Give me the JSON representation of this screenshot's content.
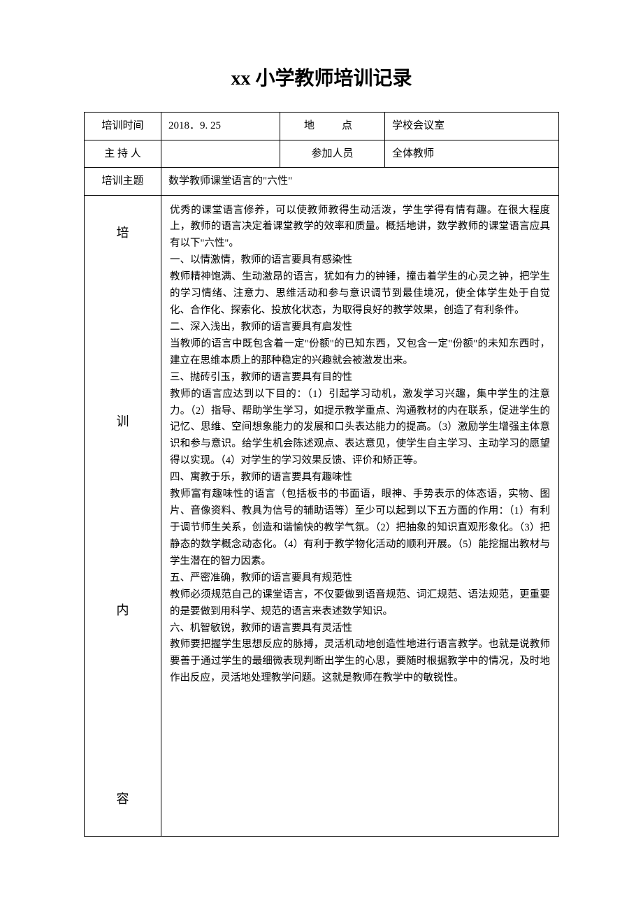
{
  "title": "xx 小学教师培训记录",
  "labels": {
    "time": "培训时间",
    "location": "地　点",
    "host": "主 持 人",
    "attendees": "参加人员",
    "subject": "培训主题",
    "content_vertical": "培\n\n\n训\n\n\n内\n\n\n容"
  },
  "header": {
    "time": "2018．9. 25",
    "location": "学校会议室",
    "host": "",
    "attendees": "全体教师",
    "subject": "数学教师课堂语言的\"六性\""
  },
  "content": "优秀的课堂语言修养，可以使教师教得生动活泼，学生学得有情有趣。在很大程度上，教师的语言决定着课堂教学的效率和质量。概括地讲，数学教师的课堂语言应具有以下\"六性\"。\n一、以情激情，教师的语言要具有感染性\n教师精神饱满、生动激昂的语言，犹如有力的钟锤，撞击着学生的心灵之钟，把学生的学习情绪、注意力、思维活动和参与意识调节到最佳境况，使全体学生处于自觉化、合作化、探索化、投放化状态，为取得良好的教学效果，创造了有利条件。\n二、深入浅出，教师的语言要具有启发性\n当教师的语言中既包含着一定\"份额\"的已知东西，又包含一定\"份额\"的未知东西时，建立在思维本质上的那种稳定的兴趣就会被激发出来。\n三、抛砖引玉，教师的语言要具有目的性\n教师的语言应达到以下目的：（1）引起学习动机，激发学习兴趣，集中学生的注意力。（2）指导、帮助学生学习，如提示教学重点、沟通教材的内在联系，促进学生的记忆、思维、空间想象能力的发展和口头表达能力的提高。（3）激励学生增强主体意识和参与意识。给学生机会陈述观点、表达意见，使学生自主学习、主动学习的愿望得以实现。（4）对学生的学习效果反馈、评价和矫正等。\n四、寓教于乐，教师的语言要具有趣味性\n教师富有趣味性的语言（包括板书的书面语，眼神、手势表示的体态语，实物、图片、音像资料、教具为信号的辅助语等）至少可以起到以下五方面的作用：（1）有利于调节师生关系，创造和谐愉快的教学气氛。（2）把抽象的知识直观形象化。（3）把静态的数学概念动态化。（4）有利于教学物化活动的顺利开展。（5）能挖掘出教材与学生潜在的智力因素。\n五、严密准确，教师的语言要具有规范性\n教师必须规范自己的课堂语言，不仅要做到语音规范、词汇规范、语法规范，更重要的是要做到用科学、规范的语言来表述数学知识。\n六、机智敏锐，教师的语言要具有灵活性\n教师要把握学生思想反应的脉搏，灵活机动地创造性地进行语言教学。也就是说教师要善于通过学生的最细微表现判断出学生的心思，要随时根据教学中的情况，及时地作出反应，灵活地处理教学问题。这就是教师在教学中的敏锐性。"
}
